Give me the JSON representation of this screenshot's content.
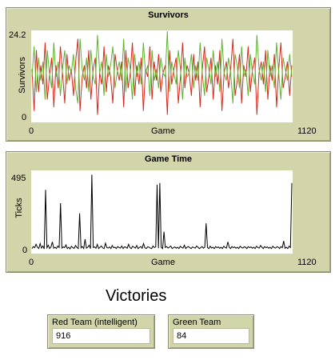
{
  "colors": {
    "widget_bg": "#d2d5aa",
    "red_team": "#d62a1e",
    "green_team": "#5fb331",
    "game_time": "#000000"
  },
  "chart_data": [
    {
      "type": "line",
      "title": "Survivors",
      "xlabel": "Game",
      "ylabel": "Survivors",
      "xlim": [
        0,
        1120
      ],
      "ylim": [
        0,
        24.2
      ],
      "x_ticks": [
        "0",
        "1120"
      ],
      "y_ticks": [
        "0",
        "24.2"
      ],
      "grid": false,
      "series": [
        {
          "name": "",
          "color": "#d62a1e",
          "values": [
            14,
            3,
            19,
            8,
            15,
            10,
            21,
            6,
            12,
            17,
            4,
            15,
            9,
            20,
            13,
            5,
            18,
            11,
            14,
            7,
            16,
            22,
            3,
            12,
            15,
            9,
            19,
            6,
            14,
            17,
            2,
            13,
            10,
            20,
            8,
            15,
            12,
            5,
            18,
            14,
            11,
            16,
            4,
            19,
            9,
            13,
            21,
            7,
            15,
            10,
            17,
            3,
            14,
            12,
            20,
            6,
            16,
            11,
            18,
            8,
            13,
            15,
            2,
            19,
            10,
            14,
            17,
            5,
            12,
            21,
            9,
            15,
            13,
            7,
            18,
            11,
            16,
            4,
            14,
            20,
            8,
            12,
            17,
            6,
            15,
            10,
            19,
            3,
            13,
            16,
            9,
            14,
            22,
            7,
            11,
            18,
            5,
            15,
            12,
            20,
            8,
            14,
            17,
            2,
            13,
            16,
            10,
            19,
            6,
            15,
            11,
            18,
            4,
            14,
            21,
            9,
            12,
            16,
            7,
            15
          ]
        },
        {
          "name": "",
          "color": "#5fb331",
          "values": [
            12,
            20,
            8,
            17,
            11,
            16,
            6,
            19,
            13,
            9,
            21,
            12,
            16,
            7,
            14,
            19,
            10,
            15,
            13,
            18,
            9,
            5,
            22,
            14,
            11,
            17,
            8,
            19,
            12,
            10,
            23,
            13,
            16,
            7,
            18,
            12,
            15,
            20,
            9,
            13,
            16,
            11,
            22,
            8,
            17,
            14,
            6,
            18,
            12,
            16,
            10,
            21,
            13,
            15,
            7,
            19,
            11,
            14,
            9,
            17,
            13,
            12,
            24,
            8,
            16,
            13,
            10,
            19,
            14,
            6,
            17,
            12,
            13,
            18,
            9,
            15,
            11,
            21,
            13,
            7,
            17,
            14,
            10,
            19,
            12,
            16,
            8,
            22,
            13,
            11,
            17,
            13,
            5,
            18,
            15,
            9,
            20,
            12,
            14,
            7,
            18,
            13,
            10,
            23,
            14,
            11,
            16,
            8,
            19,
            12,
            15,
            9,
            21,
            13,
            6,
            17,
            14,
            11,
            18,
            12
          ]
        }
      ]
    },
    {
      "type": "line",
      "title": "Game Time",
      "xlabel": "Game",
      "ylabel": "Ticks",
      "xlim": [
        0,
        1120
      ],
      "ylim": [
        0,
        495
      ],
      "x_ticks": [
        "0",
        "1120"
      ],
      "y_ticks": [
        "0",
        "495"
      ],
      "grid": false,
      "series": [
        {
          "name": "",
          "color": "#000000",
          "values": [
            30,
            42,
            35,
            55,
            38,
            30,
            60,
            33,
            45,
            28,
            380,
            35,
            50,
            30,
            40,
            70,
            32,
            38,
            30,
            45,
            36,
            300,
            33,
            40,
            35,
            52,
            30,
            38,
            28,
            44,
            35,
            31,
            48,
            36,
            30,
            240,
            34,
            42,
            30,
            85,
            33,
            38,
            50,
            30,
            470,
            36,
            40,
            32,
            55,
            30,
            38,
            45,
            34,
            30,
            62,
            36,
            33,
            40,
            30,
            48,
            35,
            38,
            30,
            42,
            36,
            33,
            45,
            30,
            40,
            38,
            32,
            55,
            36,
            30,
            44,
            38,
            33,
            48,
            30,
            36,
            42,
            32,
            60,
            35,
            30,
            40,
            38,
            33,
            30,
            45,
            36,
            40,
            410,
            32,
            420,
            38,
            30,
            130,
            36,
            42,
            33,
            38,
            45,
            30,
            35,
            40,
            32,
            38,
            30,
            44,
            36,
            33,
            50,
            30,
            38,
            42,
            35,
            30,
            40,
            36,
            33,
            45,
            38,
            30,
            35,
            42,
            32,
            38,
            180,
            36,
            30,
            44,
            33,
            38,
            30,
            42,
            35,
            40,
            32,
            38,
            30,
            44,
            36,
            33,
            70,
            38,
            30,
            42,
            35,
            40,
            32,
            38,
            30,
            44,
            36,
            33,
            40,
            38,
            30,
            42,
            35,
            40,
            32,
            38,
            30,
            44,
            36,
            33,
            48,
            38,
            30,
            42,
            35,
            40,
            32,
            38,
            30,
            44,
            36,
            33,
            40,
            38,
            30,
            42,
            35,
            75,
            32,
            38,
            30,
            44,
            36,
            420
          ]
        }
      ]
    }
  ],
  "monitors": [
    {
      "label": "Red Team (intelligent)",
      "value": "916"
    },
    {
      "label": "Green Team",
      "value": "84"
    }
  ],
  "victories_title": "Victories"
}
